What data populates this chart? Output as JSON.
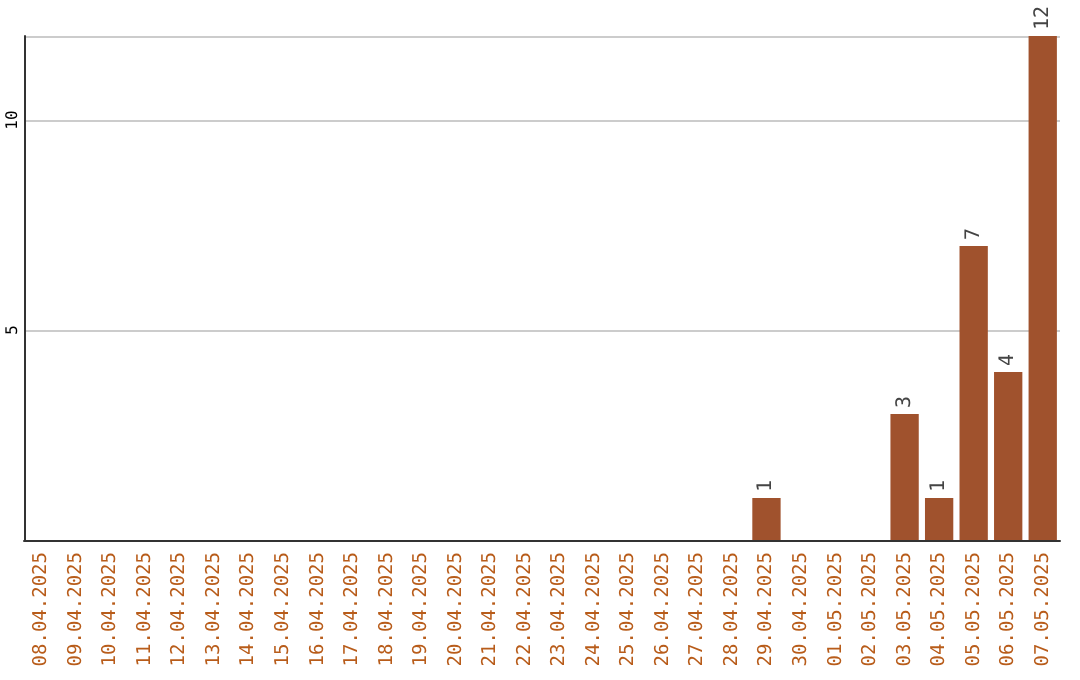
{
  "chart_data": {
    "type": "bar",
    "categories": [
      "08.04.2025",
      "09.04.2025",
      "10.04.2025",
      "11.04.2025",
      "12.04.2025",
      "13.04.2025",
      "14.04.2025",
      "15.04.2025",
      "16.04.2025",
      "17.04.2025",
      "18.04.2025",
      "19.04.2025",
      "20.04.2025",
      "21.04.2025",
      "22.04.2025",
      "23.04.2025",
      "24.04.2025",
      "25.04.2025",
      "26.04.2025",
      "27.04.2025",
      "28.04.2025",
      "29.04.2025",
      "30.04.2025",
      "01.05.2025",
      "02.05.2025",
      "03.05.2025",
      "04.05.2025",
      "05.05.2025",
      "06.05.2025",
      "07.05.2025"
    ],
    "values": [
      0,
      0,
      0,
      0,
      0,
      0,
      0,
      0,
      0,
      0,
      0,
      0,
      0,
      0,
      0,
      0,
      0,
      0,
      0,
      0,
      0,
      1,
      0,
      0,
      0,
      3,
      1,
      7,
      4,
      12
    ],
    "value_labels": [
      null,
      null,
      null,
      null,
      null,
      null,
      null,
      null,
      null,
      null,
      null,
      null,
      null,
      null,
      null,
      null,
      null,
      null,
      null,
      null,
      null,
      "1",
      null,
      null,
      null,
      "3",
      "1",
      "7",
      "4",
      "12"
    ],
    "color": "#a0522d",
    "ylim": [
      0,
      12
    ],
    "yticks": [
      5,
      10
    ],
    "grid": "y"
  }
}
